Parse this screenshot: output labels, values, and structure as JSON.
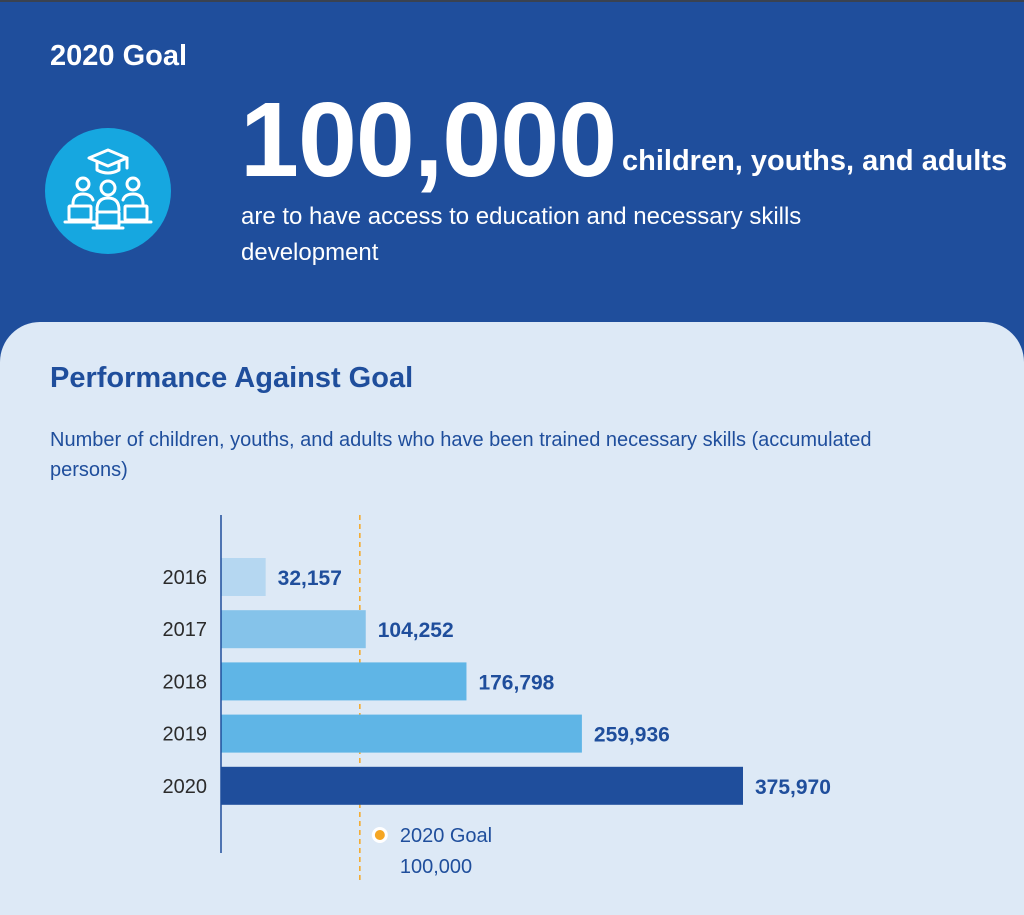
{
  "header": {
    "goal_label": "2020 Goal",
    "big_number": "100,000",
    "big_number_tail": "children, youths, and adults",
    "description": "are to have access to education and necessary skills development",
    "icon": "students-graduation-icon"
  },
  "section": {
    "title": "Performance Against Goal",
    "subtitle": "Number of children, youths, and adults who have been trained necessary skills (accumulated persons)"
  },
  "colors": {
    "banner": "#1f4e9c",
    "panel": "#dde9f6",
    "icon_circle": "#16a7e0",
    "bar_2016": "#b5d7f1",
    "bar_2017": "#85c3ea",
    "bar_2018": "#5fb5e6",
    "bar_2019": "#5fb5e6",
    "bar_2020": "#1f4e9c",
    "goal_line": "#f5a623",
    "value_text": "#1f4e9c",
    "axis": "#1f4e9c"
  },
  "chart_data": {
    "type": "bar",
    "orientation": "horizontal",
    "categories": [
      "2016",
      "2017",
      "2018",
      "2019",
      "2020"
    ],
    "values": [
      32157,
      104252,
      176798,
      259936,
      375970
    ],
    "value_labels": [
      "32,157",
      "104,252",
      "176,798",
      "259,936",
      "375,970"
    ],
    "title": "",
    "xlabel": "",
    "ylabel": "",
    "xlim": [
      0,
      375970
    ],
    "grid": false,
    "reference_line": {
      "value": 100000,
      "label_line1": "2020 Goal",
      "label_line2": "100,000",
      "style": "dashed"
    }
  }
}
